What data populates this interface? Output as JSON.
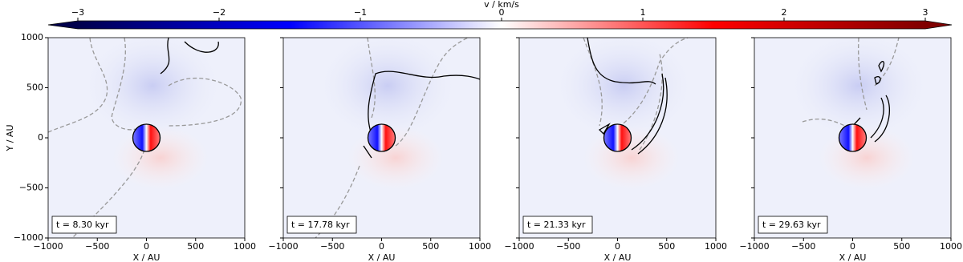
{
  "colorbar": {
    "label": "v / km/s",
    "clim": [
      -3,
      3
    ],
    "extend": "both",
    "cmap": "seismic",
    "ticks": [
      {
        "value": -3,
        "label": "−3"
      },
      {
        "value": -2,
        "label": "−2"
      },
      {
        "value": -1,
        "label": "−1"
      },
      0,
      1,
      2,
      3
    ]
  },
  "chart_data": [
    {
      "type": "image",
      "annotation": "t = 8.30 kyr",
      "xlabel": "X / AU",
      "ylabel": "Y / AU",
      "xlim": [
        -1000,
        1000
      ],
      "xticks": [
        {
          "value": -1000,
          "label": "−1000"
        },
        {
          "value": -500,
          "label": "−500"
        },
        0,
        500,
        1000
      ],
      "ylim": [
        -1000,
        1000
      ],
      "yticks": [
        {
          "value": -1000,
          "label": "−1000"
        },
        {
          "value": -500,
          "label": "−500"
        },
        0,
        500,
        1000
      ],
      "show_ytick_labels": true
    },
    {
      "type": "image",
      "annotation": "t = 17.78 kyr",
      "xlabel": "X / AU",
      "xlim": [
        -1000,
        1000
      ],
      "xticks": [
        {
          "value": -1000,
          "label": "−1000"
        },
        {
          "value": -500,
          "label": "−500"
        },
        0,
        500,
        1000
      ],
      "ylim": [
        -1000,
        1000
      ],
      "yticks": [
        -1000,
        -500,
        0,
        500,
        1000
      ],
      "show_ytick_labels": false
    },
    {
      "type": "image",
      "annotation": "t = 21.33 kyr",
      "xlabel": "X / AU",
      "xlim": [
        -1000,
        1000
      ],
      "xticks": [
        {
          "value": -1000,
          "label": "−1000"
        },
        {
          "value": -500,
          "label": "−500"
        },
        0,
        500,
        1000
      ],
      "ylim": [
        -1000,
        1000
      ],
      "yticks": [
        -1000,
        -500,
        0,
        500,
        1000
      ],
      "show_ytick_labels": false
    },
    {
      "type": "image",
      "annotation": "t = 29.63 kyr",
      "xlabel": "X / AU",
      "xlim": [
        -1000,
        1000
      ],
      "xticks": [
        {
          "value": -1000,
          "label": "−1000"
        },
        {
          "value": -500,
          "label": "−500"
        },
        0,
        500,
        1000
      ],
      "ylim": [
        -1000,
        1000
      ],
      "yticks": [
        -1000,
        -500,
        0,
        500,
        1000
      ],
      "show_ytick_labels": false
    }
  ]
}
